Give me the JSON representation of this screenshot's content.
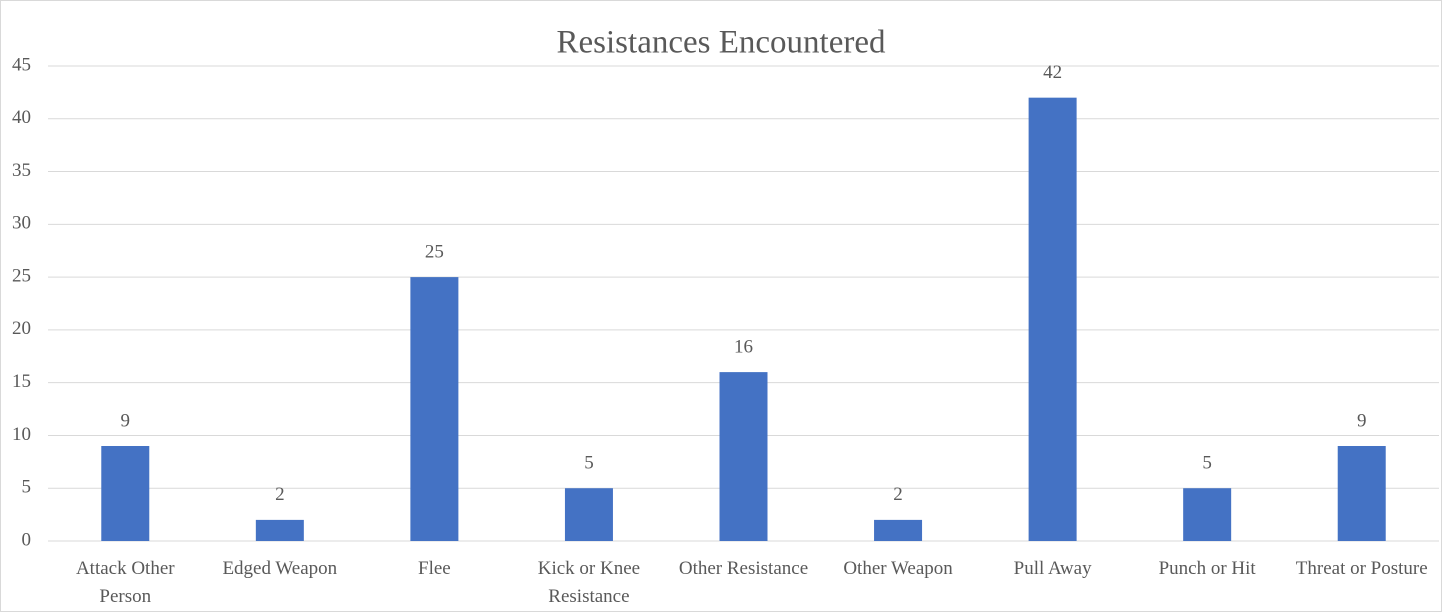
{
  "chart_data": {
    "type": "bar",
    "title": "Resistances Encountered",
    "categories": [
      "Attack Other Person",
      "Edged Weapon",
      "Flee",
      "Kick or Knee Resistance",
      "Other Resistance",
      "Other Weapon",
      "Pull Away",
      "Punch or Hit",
      "Threat or Posture"
    ],
    "values": [
      9,
      2,
      25,
      5,
      16,
      2,
      42,
      5,
      9
    ],
    "color": "#4472c4",
    "ylim": [
      0,
      45
    ],
    "yticks": [
      0,
      5,
      10,
      15,
      20,
      25,
      30,
      35,
      40,
      45
    ],
    "grid": true,
    "data_labels": true
  }
}
